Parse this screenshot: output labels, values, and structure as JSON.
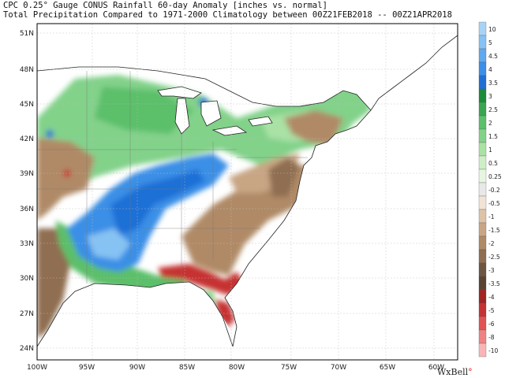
{
  "title_line1": "CPC 0.25° Gauge CONUS Rainfall 60-day Anomaly [inches vs. normal]",
  "title_line2": "Total Precipitation Compared to 1971-2000 Climatology between 00Z21FEB2018 -- 00Z21APR2018",
  "brand": "WxBell",
  "lat_labels": [
    "51N",
    "48N",
    "45N",
    "42N",
    "39N",
    "36N",
    "33N",
    "30N",
    "27N",
    "24N"
  ],
  "lon_labels": [
    "100W",
    "95W",
    "90W",
    "85W",
    "80W",
    "75W",
    "70W",
    "65W",
    "60W"
  ],
  "colorbar": {
    "labels": [
      "10",
      "5",
      "4.5",
      "4",
      "3.5",
      "3",
      "2.5",
      "2",
      "1.5",
      "1",
      "0.5",
      "0.25",
      "-0.2",
      "-0.5",
      "-1",
      "-1.5",
      "-2",
      "-2.5",
      "-3",
      "-3.5",
      "-4",
      "-5",
      "-6",
      "-8",
      "-10"
    ],
    "colors": [
      "#a9d3f5",
      "#86c2f3",
      "#5fa9ee",
      "#3b8fe6",
      "#1f6fd6",
      "#1c8c3a",
      "#3aa551",
      "#5cbf6a",
      "#82d28a",
      "#a9e2a4",
      "#cdeec6",
      "#e6f6e0",
      "#e8e8e8",
      "#f1e3d5",
      "#dcc3a8",
      "#c8a684",
      "#b08a66",
      "#8f6e51",
      "#6e5542",
      "#5a4333",
      "#a32323",
      "#c63232",
      "#e15252",
      "#ef8383",
      "#f8b5b5"
    ]
  },
  "colors": {
    "ocean": "#ffffff",
    "land": "#ffffff",
    "wet_strong": "#3b8fe6",
    "wet_moderate": "#5cbf6a",
    "dry_moderate": "#b08a66",
    "dry_strong": "#c63232"
  }
}
